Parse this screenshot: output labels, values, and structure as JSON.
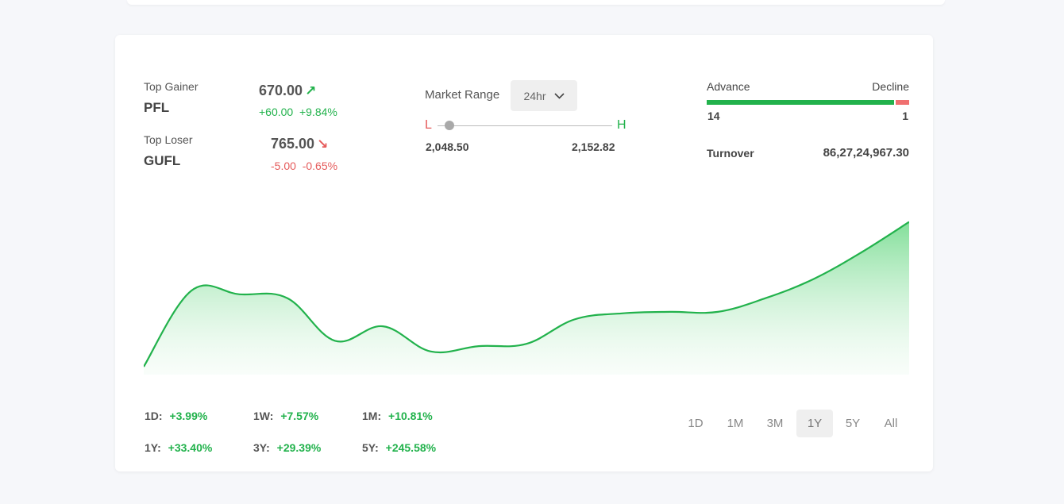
{
  "top_gainer": {
    "label": "Top Gainer",
    "symbol": "PFL",
    "price": "670.00",
    "change": "+60.00",
    "change_pct": "+9.84%",
    "arrow": "↗"
  },
  "top_loser": {
    "label": "Top Loser",
    "symbol": "GUFL",
    "price": "765.00",
    "change": "-5.00",
    "change_pct": "-0.65%",
    "arrow": "↘"
  },
  "market_range": {
    "label": "Market Range",
    "period": "24hr",
    "low_label": "L",
    "high_label": "H",
    "low": "2,048.50",
    "high": "2,152.82",
    "position": 0.07
  },
  "breadth": {
    "advance_label": "Advance",
    "decline_label": "Decline",
    "advance": "14",
    "decline": "1"
  },
  "turnover": {
    "label": "Turnover",
    "value": "86,27,24,967.30"
  },
  "returns": [
    {
      "label": "1D:",
      "value": "+3.99%"
    },
    {
      "label": "1W:",
      "value": "+7.57%"
    },
    {
      "label": "1M:",
      "value": "+10.81%"
    },
    {
      "label": "1Y:",
      "value": "+33.40%"
    },
    {
      "label": "3Y:",
      "value": "+29.39%"
    },
    {
      "label": "5Y:",
      "value": "+245.58%"
    }
  ],
  "timeframes": [
    "1D",
    "1M",
    "3M",
    "1Y",
    "5Y",
    "All"
  ],
  "active_timeframe": "1Y",
  "colors": {
    "up": "#22b24c",
    "down": "#e55b5b"
  },
  "chart_data": {
    "type": "area",
    "x": [
      0,
      1,
      2,
      3,
      4,
      5,
      6,
      7,
      8,
      9,
      10,
      11,
      12,
      13,
      14,
      15,
      16
    ],
    "values": [
      0,
      100,
      95,
      90,
      34,
      53,
      20,
      27,
      30,
      62,
      70,
      72,
      72,
      90,
      115,
      150,
      190
    ],
    "ylim": [
      0,
      200
    ],
    "grid": false,
    "axes_visible": false
  }
}
